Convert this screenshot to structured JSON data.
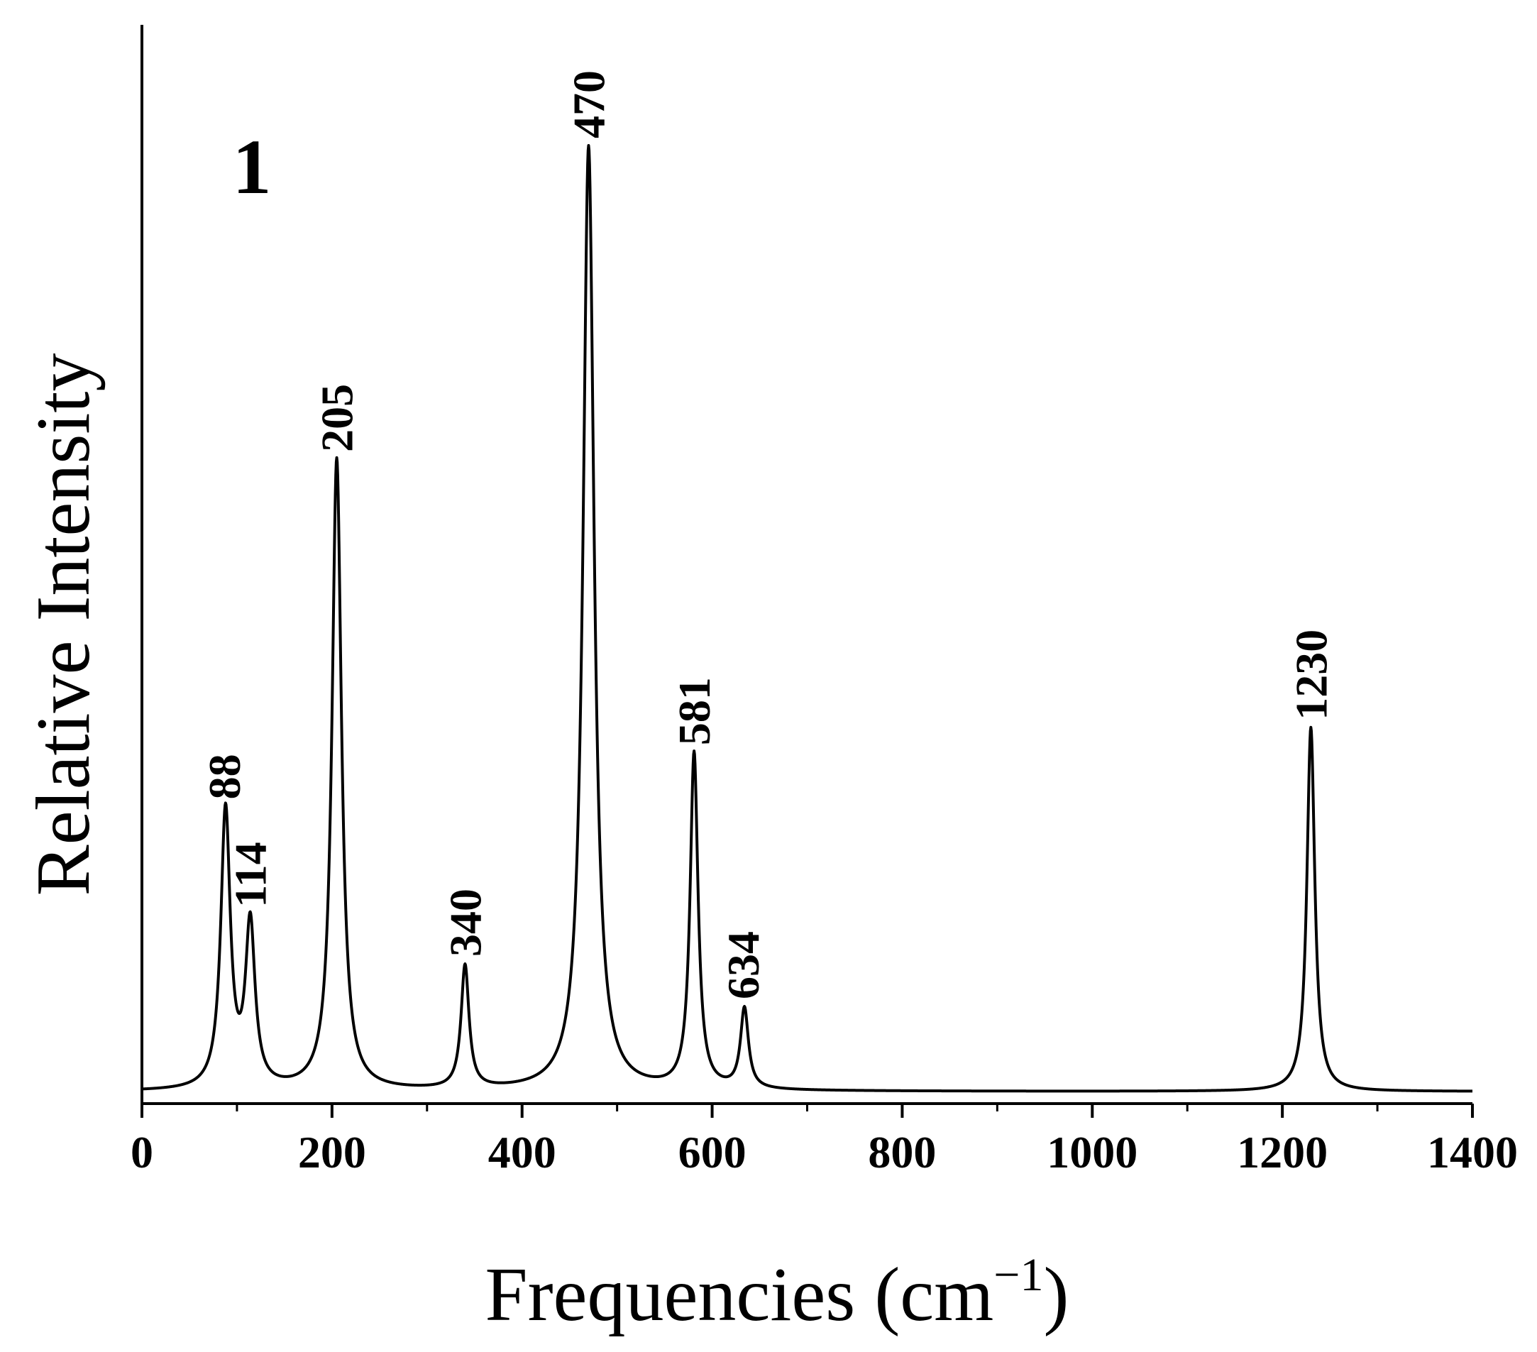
{
  "chart_data": {
    "type": "line",
    "panel_label": "1",
    "xlabel_main": "Frequencies (cm",
    "xlabel_sup": "−1",
    "xlabel_close": ")",
    "ylabel": "Relative Intensity",
    "xlim": [
      0,
      1400
    ],
    "x_ticks": [
      0,
      200,
      400,
      600,
      800,
      1000,
      1200,
      1400
    ],
    "x_tick_labels": [
      "0",
      "200",
      "400",
      "600",
      "800",
      "1000",
      "1200",
      "1400"
    ],
    "y_tick_labels_shown": false,
    "grid": false,
    "legend": "none",
    "line_color": "#000000",
    "peaks": [
      {
        "x": 88,
        "label": "88",
        "intensity": 0.305
      },
      {
        "x": 114,
        "label": "114",
        "intensity": 0.19
      },
      {
        "x": 205,
        "label": "205",
        "intensity": 0.67
      },
      {
        "x": 340,
        "label": "340",
        "intensity": 0.135
      },
      {
        "x": 470,
        "label": "470",
        "intensity": 1.0
      },
      {
        "x": 581,
        "label": "581",
        "intensity": 0.36
      },
      {
        "x": 634,
        "label": "634",
        "intensity": 0.09
      },
      {
        "x": 1230,
        "label": "1230",
        "intensity": 0.385
      }
    ]
  }
}
